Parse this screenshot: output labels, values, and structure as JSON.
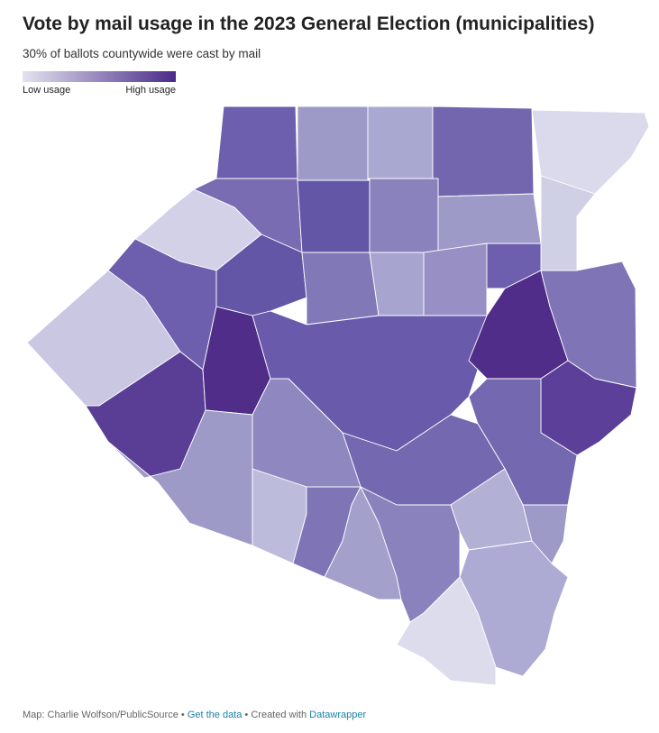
{
  "header": {
    "title": "Vote by mail usage in the 2023 General Election (municipalities)",
    "subtitle": "30% of ballots countywide were cast by mail"
  },
  "legend": {
    "low_label": "Low usage",
    "high_label": "High usage"
  },
  "footer": {
    "source": "Map: Charlie Wolfson/PublicSource",
    "separator": "•",
    "get_data": "Get the data",
    "created_with": "Created with",
    "datawrapper": "Datawrapper"
  }
}
